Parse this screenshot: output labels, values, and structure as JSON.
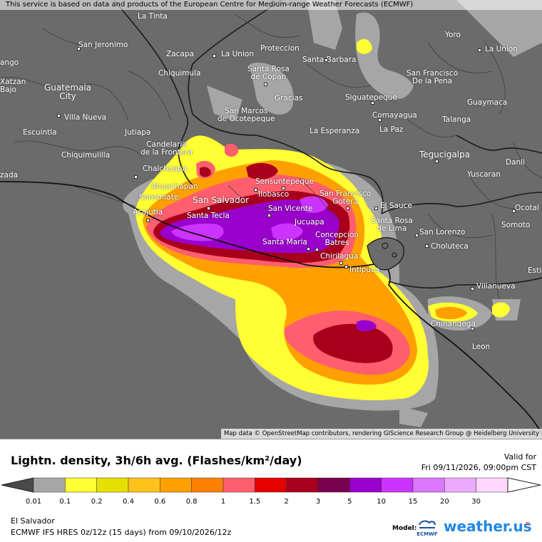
{
  "attribution_top": "This service is based on data and products of the European Centre for Medium-range Weather Forecasts (ECMWF)",
  "attribution_bottom": "Map data © OpenStreetMap contributors, rendering GIScience Research Group @ Heidelberg University",
  "cities": [
    {
      "name": "La Tinta"
    },
    {
      "name": "San Jeronimo"
    },
    {
      "name": "Zacapa"
    },
    {
      "name": "La Union"
    },
    {
      "name": "Proteccion"
    },
    {
      "name": "Santa Barbara"
    },
    {
      "name": "Yoro"
    },
    {
      "name": "La Union"
    },
    {
      "name": "Chiquimula"
    },
    {
      "name": "Santa Rosa\nde Copan"
    },
    {
      "name": "San Francisco\nDe la Pena"
    },
    {
      "name": "Guatemala\nCity"
    },
    {
      "name": "Gracias"
    },
    {
      "name": "Siguatepeque"
    },
    {
      "name": "Guaymaca"
    },
    {
      "name": "Villa Nueva"
    },
    {
      "name": "San Marcos\nde Ocotepeque"
    },
    {
      "name": "Comayagua"
    },
    {
      "name": "Talanga"
    },
    {
      "name": "Escuintla"
    },
    {
      "name": "Jutiapa"
    },
    {
      "name": "La Esperanza"
    },
    {
      "name": "La Paz"
    },
    {
      "name": "Chiquimulilla"
    },
    {
      "name": "Candelaria\nde la Frontera"
    },
    {
      "name": "Tegucigalpa"
    },
    {
      "name": "Danli"
    },
    {
      "name": "Chalchuapa"
    },
    {
      "name": "Yuscaran"
    },
    {
      "name": "Ahuachapan"
    },
    {
      "name": "Sensuntepeque"
    },
    {
      "name": "Ilobasco"
    },
    {
      "name": "San Francisco\nGotera"
    },
    {
      "name": "El Sauce"
    },
    {
      "name": "Sonsonate"
    },
    {
      "name": "San Salvador"
    },
    {
      "name": "San Vicente"
    },
    {
      "name": "Ocotal"
    },
    {
      "name": "Acajutla"
    },
    {
      "name": "Santa Tecla"
    },
    {
      "name": "Santa Rosa\nde Lima"
    },
    {
      "name": "Somoto"
    },
    {
      "name": "Jucuapa"
    },
    {
      "name": "San Lorenzo"
    },
    {
      "name": "Concepcion\nBatres"
    },
    {
      "name": "Santa Maria"
    },
    {
      "name": "Choluteca"
    },
    {
      "name": "Chirilagua"
    },
    {
      "name": "Intipuca"
    },
    {
      "name": "Villanueva"
    },
    {
      "name": "Chinandega"
    },
    {
      "name": "Leon"
    },
    {
      "name": "zada"
    },
    {
      "name": "Xatzan\nBajo"
    },
    {
      "name": "Esti"
    },
    {
      "name": "ango"
    }
  ],
  "legend": {
    "title": "Lightn. density, 3h/6h avg. (Flashes/km²/day)",
    "valid_label": "Valid for",
    "valid_time": "Fri 09/11/2026, 09:00pm CST",
    "bins": [
      {
        "label": "0.01",
        "color": "#a6a6a6"
      },
      {
        "label": "0.1",
        "color": "#ffff33"
      },
      {
        "label": "0.2",
        "color": "#e6e000"
      },
      {
        "label": "0.4",
        "color": "#ffc21a"
      },
      {
        "label": "0.6",
        "color": "#ffa000"
      },
      {
        "label": "0.8",
        "color": "#ff7f00"
      },
      {
        "label": "1",
        "color": "#ff5e6e"
      },
      {
        "label": "1.5",
        "color": "#e60000"
      },
      {
        "label": "2",
        "color": "#a8001c"
      },
      {
        "label": "3",
        "color": "#7a0050"
      },
      {
        "label": "5",
        "color": "#9a00cc"
      },
      {
        "label": "10",
        "color": "#cc33ff"
      },
      {
        "label": "15",
        "color": "#dd77ff"
      },
      {
        "label": "20",
        "color": "#eeaaff"
      },
      {
        "label": "30",
        "color": "#ffd6ff"
      }
    ],
    "region": "El Salvador",
    "model_run": "ECMWF IFS HRES 0z/12z (15 days) from 09/10/2026/12z",
    "model_label": "Model:",
    "model_logo_text": "ECMWF",
    "brand": "weather.us"
  }
}
